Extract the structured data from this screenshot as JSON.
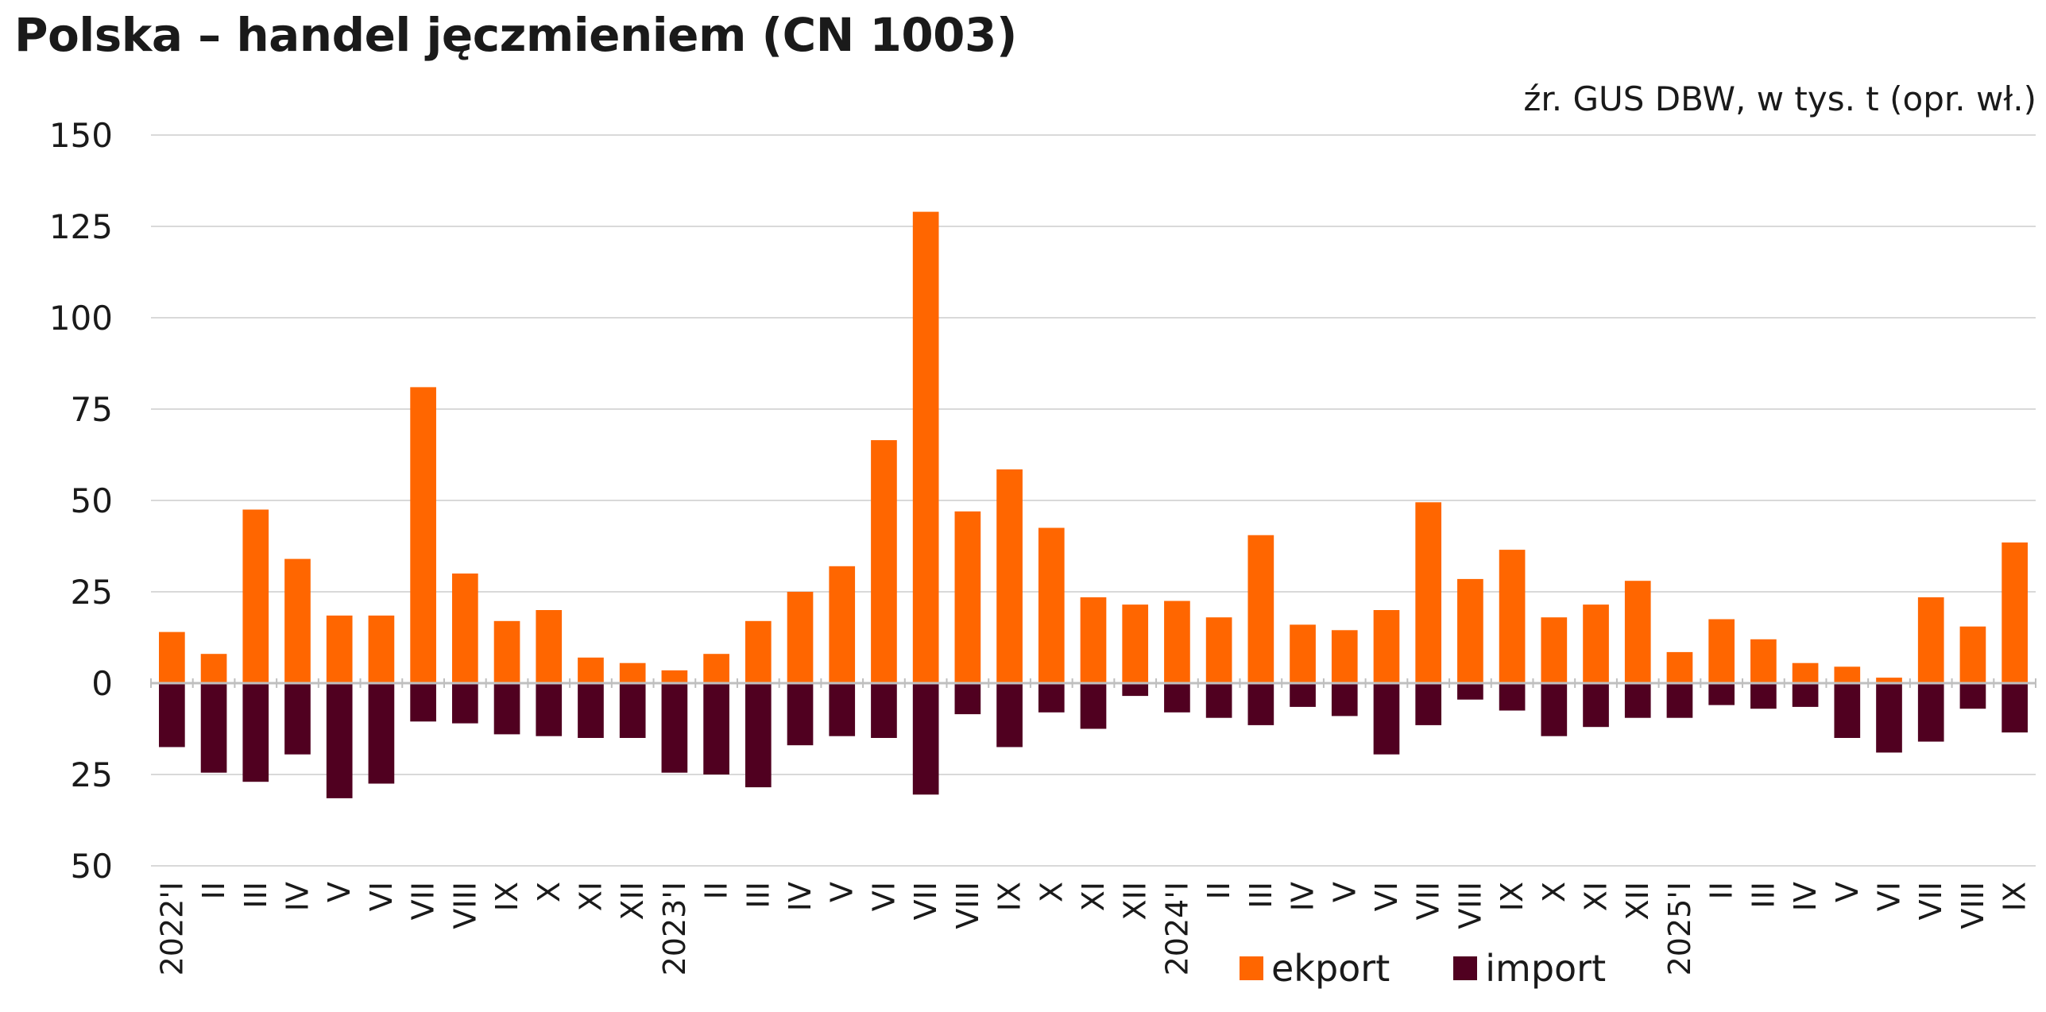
{
  "chart_data": {
    "type": "bar",
    "title": "Polska – handel jęczmieniem (CN 1003)",
    "subtitle": "źr. GUS DBW, w tys. t (opr. wł.)",
    "categories": [
      "2022'I",
      "II",
      "III",
      "IV",
      "V",
      "VI",
      "VII",
      "VIII",
      "IX",
      "X",
      "XI",
      "XII",
      "2023'I",
      "II",
      "III",
      "IV",
      "V",
      "VI",
      "VII",
      "VIII",
      "IX",
      "X",
      "XI",
      "XII",
      "2024'I",
      "II",
      "III",
      "IV",
      "V",
      "VI",
      "VII",
      "VIII",
      "IX",
      "X",
      "XI",
      "XII",
      "2025'I",
      "II",
      "III",
      "IV",
      "V",
      "VI",
      "VII",
      "VIII",
      "IX"
    ],
    "series": [
      {
        "name": "ekport",
        "color": "#ff6600",
        "values": [
          14,
          8,
          47.5,
          34,
          18.5,
          18.5,
          81,
          30,
          17,
          20,
          7,
          5.5,
          3.5,
          8,
          17,
          25,
          32,
          66.5,
          129,
          47,
          58.5,
          42.5,
          23.5,
          21.5,
          22.5,
          18,
          40.5,
          16,
          14.5,
          20,
          49.5,
          28.5,
          36.5,
          18,
          21.5,
          28,
          8.5,
          17.5,
          12,
          5.5,
          4.5,
          1.5,
          23.5,
          15.5,
          38.5
        ]
      },
      {
        "name": "import",
        "color": "#500020",
        "values": [
          -17.5,
          -24.5,
          -27,
          -19.5,
          -31.5,
          -27.5,
          -10.5,
          -11,
          -14,
          -14.5,
          -15,
          -15,
          -24.5,
          -25,
          -28.5,
          -17,
          -14.5,
          -15,
          -30.5,
          -8.5,
          -17.5,
          -8,
          -12.5,
          -3.5,
          -8,
          -9.5,
          -11.5,
          -6.5,
          -9,
          -19.5,
          -11.5,
          -4.5,
          -7.5,
          -14.5,
          -12,
          -9.5,
          -9.5,
          -6,
          -7,
          -6.5,
          -15,
          -19,
          -16,
          -7,
          -13.5
        ]
      }
    ],
    "yticks": [
      150,
      125,
      100,
      75,
      50,
      25,
      0,
      -25,
      -50
    ],
    "ytick_labels": [
      "150",
      "125",
      "100",
      "75",
      "50",
      "25",
      "0",
      "25",
      "50"
    ],
    "ylim": [
      -50,
      150
    ],
    "grid": true,
    "legend": "bottom-right"
  }
}
